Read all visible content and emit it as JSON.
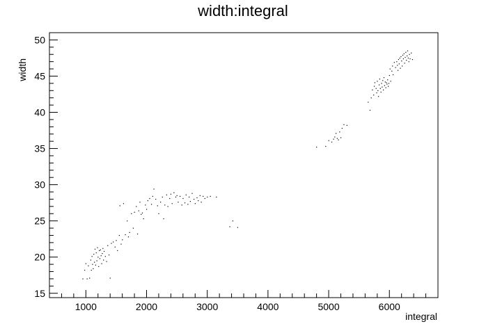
{
  "chart_data": {
    "type": "scatter",
    "title": "width:integral",
    "xlabel": "integral",
    "ylabel": "width",
    "xlim": [
      400,
      6800
    ],
    "ylim": [
      14.4,
      51.0
    ],
    "grid": false,
    "legend": "none",
    "x_ticks": [
      1000,
      2000,
      3000,
      4000,
      5000,
      6000
    ],
    "y_ticks": [
      15,
      20,
      25,
      30,
      35,
      40,
      45,
      50
    ],
    "x_tick_labels": [
      "1000",
      "2000",
      "3000",
      "4000",
      "5000",
      "6000"
    ],
    "y_tick_labels": [
      "15",
      "20",
      "25",
      "30",
      "35",
      "40",
      "45",
      "50"
    ],
    "colors": {
      "points": "#000000",
      "axis": "#000000",
      "background": "#ffffff"
    },
    "points": [
      [
        950,
        17.0
      ],
      [
        980,
        18.2
      ],
      [
        1000,
        19.1
      ],
      [
        1020,
        17.0
      ],
      [
        1040,
        18.8
      ],
      [
        1060,
        17.1
      ],
      [
        1080,
        19.6
      ],
      [
        1090,
        18.2
      ],
      [
        1100,
        20.1
      ],
      [
        1110,
        19.0
      ],
      [
        1120,
        18.4
      ],
      [
        1130,
        20.4
      ],
      [
        1140,
        19.3
      ],
      [
        1150,
        21.1
      ],
      [
        1160,
        18.9
      ],
      [
        1170,
        20.6
      ],
      [
        1180,
        19.5
      ],
      [
        1190,
        21.3
      ],
      [
        1200,
        20.0
      ],
      [
        1210,
        18.7
      ],
      [
        1220,
        20.9
      ],
      [
        1230,
        19.8
      ],
      [
        1240,
        21.0
      ],
      [
        1250,
        20.2
      ],
      [
        1260,
        19.1
      ],
      [
        1270,
        20.5
      ],
      [
        1280,
        21.2
      ],
      [
        1290,
        19.6
      ],
      [
        1300,
        20.8
      ],
      [
        1320,
        20.1
      ],
      [
        1340,
        19.4
      ],
      [
        1360,
        21.6
      ],
      [
        1380,
        20.3
      ],
      [
        1400,
        17.1
      ],
      [
        1420,
        21.9
      ],
      [
        1450,
        22.1
      ],
      [
        1480,
        21.4
      ],
      [
        1500,
        22.3
      ],
      [
        1520,
        20.9
      ],
      [
        1550,
        23.0
      ],
      [
        1560,
        27.1
      ],
      [
        1580,
        21.8
      ],
      [
        1600,
        22.4
      ],
      [
        1620,
        27.4
      ],
      [
        1650,
        23.1
      ],
      [
        1680,
        25.0
      ],
      [
        1700,
        22.8
      ],
      [
        1720,
        23.4
      ],
      [
        1750,
        26.0
      ],
      [
        1780,
        24.0
      ],
      [
        1800,
        26.2
      ],
      [
        1830,
        27.0
      ],
      [
        1850,
        23.2
      ],
      [
        1870,
        26.4
      ],
      [
        1890,
        27.6
      ],
      [
        1910,
        25.9
      ],
      [
        1930,
        26.1
      ],
      [
        1950,
        25.3
      ],
      [
        1980,
        27.2
      ],
      [
        2000,
        26.6
      ],
      [
        2020,
        27.8
      ],
      [
        2050,
        28.1
      ],
      [
        2080,
        27.3
      ],
      [
        2100,
        28.4
      ],
      [
        2120,
        29.4
      ],
      [
        2150,
        28.0
      ],
      [
        2180,
        27.1
      ],
      [
        2200,
        26.0
      ],
      [
        2230,
        27.6
      ],
      [
        2260,
        28.3
      ],
      [
        2280,
        25.3
      ],
      [
        2300,
        27.2
      ],
      [
        2330,
        28.6
      ],
      [
        2350,
        27.0
      ],
      [
        2380,
        28.1
      ],
      [
        2400,
        28.7
      ],
      [
        2420,
        27.4
      ],
      [
        2450,
        28.9
      ],
      [
        2480,
        28.3
      ],
      [
        2500,
        28.5
      ],
      [
        2520,
        27.6
      ],
      [
        2550,
        28.4
      ],
      [
        2580,
        27.2
      ],
      [
        2600,
        28.1
      ],
      [
        2630,
        27.5
      ],
      [
        2650,
        28.6
      ],
      [
        2680,
        27.3
      ],
      [
        2700,
        28.3
      ],
      [
        2720,
        27.7
      ],
      [
        2750,
        28.8
      ],
      [
        2780,
        28.0
      ],
      [
        2800,
        27.4
      ],
      [
        2830,
        28.2
      ],
      [
        2850,
        27.8
      ],
      [
        2880,
        28.5
      ],
      [
        2900,
        27.6
      ],
      [
        2930,
        28.4
      ],
      [
        2960,
        28.1
      ],
      [
        3000,
        28.3
      ],
      [
        3050,
        28.4
      ],
      [
        3150,
        28.3
      ],
      [
        3370,
        24.2
      ],
      [
        3420,
        25.0
      ],
      [
        3500,
        24.1
      ],
      [
        4800,
        35.2
      ],
      [
        4950,
        35.3
      ],
      [
        5000,
        36.1
      ],
      [
        5050,
        35.9
      ],
      [
        5080,
        36.3
      ],
      [
        5100,
        36.6
      ],
      [
        5120,
        37.1
      ],
      [
        5140,
        36.4
      ],
      [
        5160,
        36.2
      ],
      [
        5180,
        37.3
      ],
      [
        5200,
        36.5
      ],
      [
        5220,
        37.8
      ],
      [
        5250,
        38.3
      ],
      [
        5300,
        38.2
      ],
      [
        5650,
        41.4
      ],
      [
        5680,
        40.3
      ],
      [
        5700,
        42.0
      ],
      [
        5720,
        43.1
      ],
      [
        5740,
        42.4
      ],
      [
        5750,
        43.6
      ],
      [
        5760,
        44.1
      ],
      [
        5780,
        43.3
      ],
      [
        5790,
        42.7
      ],
      [
        5800,
        44.3
      ],
      [
        5810,
        43.0
      ],
      [
        5820,
        42.2
      ],
      [
        5830,
        43.8
      ],
      [
        5840,
        44.6
      ],
      [
        5850,
        43.3
      ],
      [
        5860,
        42.8
      ],
      [
        5870,
        44.0
      ],
      [
        5880,
        43.5
      ],
      [
        5890,
        44.4
      ],
      [
        5900,
        43.1
      ],
      [
        5910,
        44.8
      ],
      [
        5920,
        43.7
      ],
      [
        5930,
        44.2
      ],
      [
        5940,
        43.4
      ],
      [
        5950,
        44.1
      ],
      [
        5960,
        43.9
      ],
      [
        5970,
        44.5
      ],
      [
        5980,
        43.6
      ],
      [
        5990,
        44.0
      ],
      [
        6000,
        45.1
      ],
      [
        6010,
        46.0
      ],
      [
        6020,
        44.3
      ],
      [
        6040,
        45.7
      ],
      [
        6050,
        46.4
      ],
      [
        6060,
        45.2
      ],
      [
        6080,
        46.9
      ],
      [
        6100,
        46.2
      ],
      [
        6120,
        47.0
      ],
      [
        6130,
        46.5
      ],
      [
        6140,
        45.8
      ],
      [
        6150,
        47.3
      ],
      [
        6160,
        46.7
      ],
      [
        6170,
        47.5
      ],
      [
        6180,
        46.1
      ],
      [
        6190,
        47.7
      ],
      [
        6200,
        47.1
      ],
      [
        6210,
        46.4
      ],
      [
        6220,
        47.9
      ],
      [
        6230,
        47.4
      ],
      [
        6240,
        48.1
      ],
      [
        6250,
        46.8
      ],
      [
        6260,
        47.6
      ],
      [
        6270,
        48.3
      ],
      [
        6280,
        47.2
      ],
      [
        6290,
        47.8
      ],
      [
        6300,
        48.5
      ],
      [
        6310,
        47.5
      ],
      [
        6320,
        47.0
      ],
      [
        6330,
        48.0
      ],
      [
        6340,
        47.4
      ],
      [
        6360,
        48.2
      ],
      [
        6380,
        47.3
      ]
    ]
  }
}
